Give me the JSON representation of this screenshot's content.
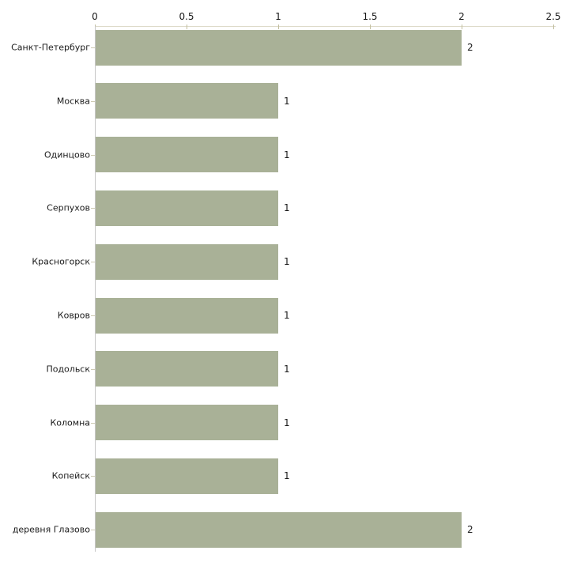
{
  "chart_data": {
    "type": "bar",
    "orientation": "horizontal",
    "title": "",
    "categories": [
      "Санкт-Петербург",
      "Москва",
      "Одинцово",
      "Серпухов",
      "Красногорск",
      "Ковров",
      "Подольск",
      "Коломна",
      "Копейск",
      "деревня Глазово"
    ],
    "values": [
      2,
      1,
      1,
      1,
      1,
      1,
      1,
      1,
      1,
      2
    ],
    "value_labels": [
      "2",
      "1",
      "1",
      "1",
      "1",
      "1",
      "1",
      "1",
      "1",
      "2"
    ],
    "x_ticks": [
      {
        "label": "0",
        "value": 0
      },
      {
        "label": "0.5",
        "value": 0.5
      },
      {
        "label": "1",
        "value": 1
      },
      {
        "label": "1.5",
        "value": 1.5
      },
      {
        "label": "2",
        "value": 2
      },
      {
        "label": "2.5",
        "value": 2.5
      }
    ],
    "xlim": [
      0,
      2.5
    ],
    "xlabel": "",
    "ylabel": "",
    "grid": false,
    "legend": null,
    "axis_position": "top",
    "colors": {
      "bar": "#a9b197",
      "axis_line": "#dedbca",
      "axis_tick": "#c2bfa0",
      "category_tick": "#cdcab2",
      "y_axis_line": "#c6c6c6",
      "text": "#1a1a1a",
      "background": "#ffffff"
    }
  }
}
